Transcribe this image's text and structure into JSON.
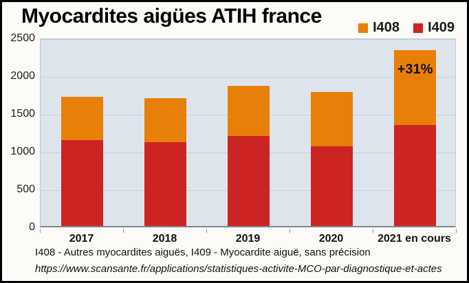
{
  "title": "Myocardites aigües ATIH france",
  "legend": [
    {
      "label": "I408",
      "color": "#e87f08"
    },
    {
      "label": "I409",
      "color": "#cc2423"
    }
  ],
  "footnotes": {
    "line1": "I408 - Autres myocardites aiguës, I409 - Myocardite aiguë, sans précision",
    "line2": "https://www.scansante.fr/applications/statistiques-activite-MCO-par-diagnostique-et-actes"
  },
  "chart_data": {
    "type": "bar",
    "stacked": true,
    "title": "Myocardites aigües ATIH france",
    "categories": [
      "2017",
      "2018",
      "2019",
      "2020",
      "2021 en cours"
    ],
    "series": [
      {
        "name": "I409",
        "color": "#cc2423",
        "values": [
          1135,
          1105,
          1195,
          1055,
          1340
        ]
      },
      {
        "name": "I408",
        "color": "#e87f08",
        "values": [
          575,
          590,
          660,
          720,
          985
        ]
      }
    ],
    "totals": [
      1710,
      1695,
      1855,
      1775,
      2325
    ],
    "annotation": {
      "text": "+31%",
      "category": "2021 en cours"
    },
    "xlabel": "",
    "ylabel": "",
    "ylim": [
      0,
      2500
    ],
    "ytick_step": 500,
    "yticks": [
      0,
      500,
      1000,
      1500,
      2000,
      2500
    ],
    "grid": true,
    "legend_position": "top-right",
    "plot_bg": "#dee4ec",
    "grid_color": "#c8cfd9"
  }
}
